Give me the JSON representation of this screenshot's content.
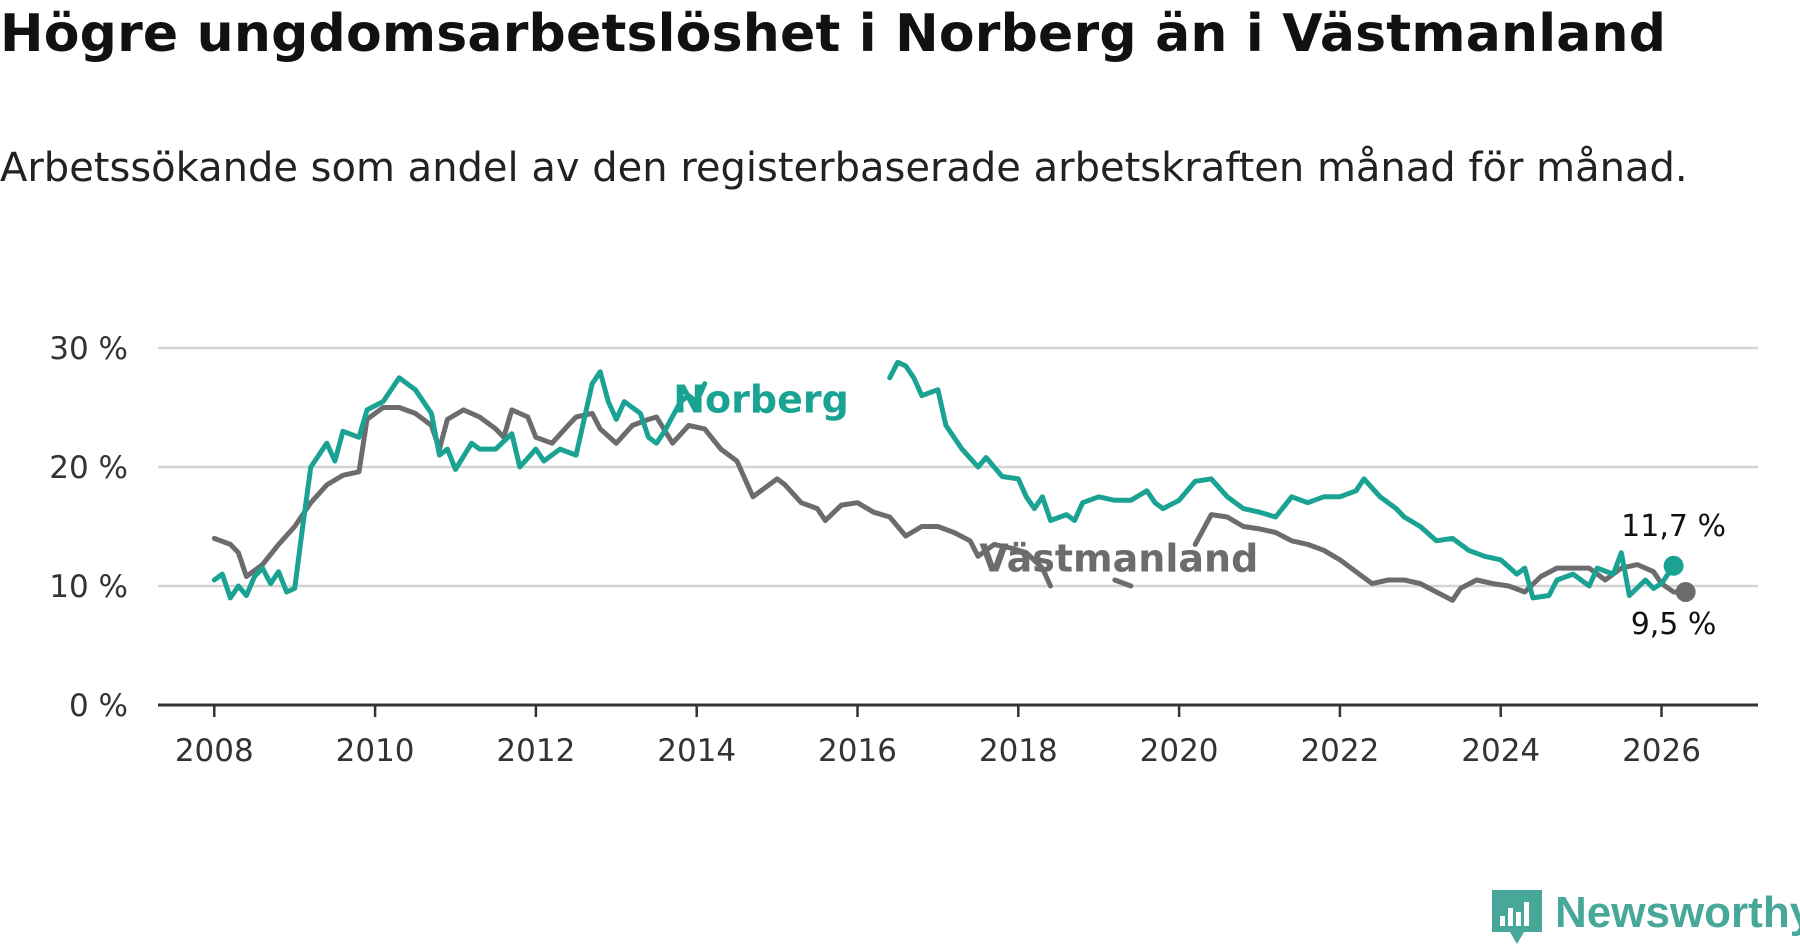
{
  "title": "Högre ungdomsarbetslöshet i Norberg än i Västmanland",
  "subtitle": "Arbetssökande som andel av den registerbaserade arbetskraften månad för månad.",
  "brand": {
    "name": "Newsworthy",
    "icon": "newsworthy-logo-icon",
    "color": "#47a89a"
  },
  "chart_data": {
    "type": "line",
    "title": "Högre ungdomsarbetslöshet i Norberg än i Västmanland",
    "xlabel": "",
    "ylabel": "",
    "ylim": [
      0,
      30
    ],
    "xlim": [
      2007.3,
      2027.2
    ],
    "grid": true,
    "y_ticks": [
      0,
      10,
      20,
      30
    ],
    "y_tick_labels": [
      "0 %",
      "10 %",
      "20 %",
      "30 %"
    ],
    "x_ticks": [
      2008,
      2010,
      2012,
      2014,
      2016,
      2018,
      2020,
      2022,
      2024,
      2026
    ],
    "x_tick_labels": [
      "2008",
      "2010",
      "2012",
      "2014",
      "2016",
      "2018",
      "2020",
      "2022",
      "2024",
      "2026"
    ],
    "series": [
      {
        "name": "Västmanland",
        "color": "#6d6b6e",
        "label_text": "Västmanland",
        "end_label": "9,5 %",
        "points": [
          [
            2008.0,
            14.0
          ],
          [
            2008.2,
            13.5
          ],
          [
            2008.3,
            12.8
          ],
          [
            2008.4,
            10.8
          ],
          [
            2008.6,
            11.8
          ],
          [
            2008.8,
            13.5
          ],
          [
            2009.0,
            15.0
          ],
          [
            2009.2,
            17.0
          ],
          [
            2009.4,
            18.5
          ],
          [
            2009.6,
            19.3
          ],
          [
            2009.8,
            19.6
          ],
          [
            2009.9,
            24.0
          ],
          [
            2010.1,
            25.0
          ],
          [
            2010.3,
            25.0
          ],
          [
            2010.5,
            24.5
          ],
          [
            2010.7,
            23.5
          ],
          [
            2010.8,
            21.5
          ],
          [
            2010.9,
            24.0
          ],
          [
            2011.1,
            24.8
          ],
          [
            2011.3,
            24.2
          ],
          [
            2011.5,
            23.2
          ],
          [
            2011.6,
            22.5
          ],
          [
            2011.7,
            24.8
          ],
          [
            2011.9,
            24.2
          ],
          [
            2012.0,
            22.5
          ],
          [
            2012.2,
            22.0
          ],
          [
            2012.4,
            23.5
          ],
          [
            2012.5,
            24.2
          ],
          [
            2012.7,
            24.5
          ],
          [
            2012.8,
            23.2
          ],
          [
            2013.0,
            22.0
          ],
          [
            2013.2,
            23.5
          ],
          [
            2013.4,
            24.0
          ],
          [
            2013.5,
            24.2
          ],
          [
            2013.7,
            22.0
          ],
          [
            2013.9,
            23.5
          ],
          [
            2014.1,
            23.2
          ],
          [
            2014.3,
            21.5
          ],
          [
            2014.5,
            20.5
          ],
          [
            2014.6,
            19.0
          ],
          [
            2014.7,
            17.5
          ],
          [
            2014.8,
            18.0
          ],
          [
            2015.0,
            19.0
          ],
          [
            2015.1,
            18.5
          ],
          [
            2015.3,
            17.0
          ],
          [
            2015.5,
            16.5
          ],
          [
            2015.6,
            15.5
          ],
          [
            2015.8,
            16.8
          ],
          [
            2016.0,
            17.0
          ],
          [
            2016.2,
            16.2
          ],
          [
            2016.4,
            15.8
          ],
          [
            2016.6,
            14.2
          ],
          [
            2016.8,
            15.0
          ],
          [
            2017.0,
            15.0
          ],
          [
            2017.2,
            14.5
          ],
          [
            2017.4,
            13.8
          ],
          [
            2017.5,
            12.5
          ],
          [
            2017.7,
            13.5
          ],
          [
            2017.9,
            13.2
          ],
          [
            2018.1,
            12.8
          ],
          [
            2018.3,
            11.5
          ],
          [
            2018.4,
            10.0
          ],
          [
            2018.6,
            11.2
          ],
          [
            2018.8,
            11.8
          ],
          [
            2019.0,
            11.0
          ],
          [
            2019.2,
            10.5
          ],
          [
            2019.4,
            10.0
          ],
          [
            2019.6,
            10.8
          ],
          [
            2019.8,
            11.5
          ],
          [
            2020.0,
            12.5
          ],
          [
            2020.2,
            13.5
          ],
          [
            2020.4,
            16.0
          ],
          [
            2020.6,
            15.8
          ],
          [
            2020.8,
            15.0
          ],
          [
            2021.0,
            14.8
          ],
          [
            2021.2,
            14.5
          ],
          [
            2021.4,
            13.8
          ],
          [
            2021.6,
            13.5
          ],
          [
            2021.8,
            13.0
          ],
          [
            2022.0,
            12.2
          ],
          [
            2022.2,
            11.2
          ],
          [
            2022.4,
            10.2
          ],
          [
            2022.6,
            10.5
          ],
          [
            2022.8,
            10.5
          ],
          [
            2023.0,
            10.2
          ],
          [
            2023.2,
            9.5
          ],
          [
            2023.4,
            8.8
          ],
          [
            2023.5,
            9.8
          ],
          [
            2023.7,
            10.5
          ],
          [
            2023.9,
            10.2
          ],
          [
            2024.1,
            10.0
          ],
          [
            2024.3,
            9.5
          ],
          [
            2024.5,
            10.8
          ],
          [
            2024.7,
            11.5
          ],
          [
            2024.9,
            11.5
          ],
          [
            2025.1,
            11.5
          ],
          [
            2025.3,
            10.5
          ],
          [
            2025.5,
            11.5
          ],
          [
            2025.7,
            11.8
          ],
          [
            2025.9,
            11.2
          ],
          [
            2026.0,
            10.2
          ],
          [
            2026.15,
            9.5
          ],
          [
            2026.3,
            9.5
          ]
        ],
        "gaps": [
          [
            2018.55,
            2019.05
          ],
          [
            2019.55,
            2020.15
          ]
        ]
      },
      {
        "name": "Norberg",
        "color": "#1aa393",
        "label_text": "Norberg",
        "end_label": "11,7 %",
        "points": [
          [
            2008.0,
            10.5
          ],
          [
            2008.1,
            11.0
          ],
          [
            2008.2,
            9.0
          ],
          [
            2008.3,
            10.0
          ],
          [
            2008.4,
            9.2
          ],
          [
            2008.5,
            10.8
          ],
          [
            2008.6,
            11.5
          ],
          [
            2008.7,
            10.2
          ],
          [
            2008.8,
            11.2
          ],
          [
            2008.9,
            9.5
          ],
          [
            2009.0,
            9.8
          ],
          [
            2009.1,
            15.0
          ],
          [
            2009.2,
            20.0
          ],
          [
            2009.4,
            22.0
          ],
          [
            2009.5,
            20.5
          ],
          [
            2009.6,
            23.0
          ],
          [
            2009.8,
            22.5
          ],
          [
            2009.9,
            24.8
          ],
          [
            2010.1,
            25.5
          ],
          [
            2010.3,
            27.5
          ],
          [
            2010.4,
            27.0
          ],
          [
            2010.5,
            26.5
          ],
          [
            2010.7,
            24.5
          ],
          [
            2010.8,
            21.0
          ],
          [
            2010.9,
            21.5
          ],
          [
            2011.0,
            19.8
          ],
          [
            2011.2,
            22.0
          ],
          [
            2011.3,
            21.5
          ],
          [
            2011.5,
            21.5
          ],
          [
            2011.7,
            22.8
          ],
          [
            2011.8,
            20.0
          ],
          [
            2012.0,
            21.5
          ],
          [
            2012.1,
            20.5
          ],
          [
            2012.3,
            21.5
          ],
          [
            2012.5,
            21.0
          ],
          [
            2012.7,
            27.0
          ],
          [
            2012.8,
            28.0
          ],
          [
            2012.9,
            25.5
          ],
          [
            2013.0,
            24.0
          ],
          [
            2013.1,
            25.5
          ],
          [
            2013.3,
            24.5
          ],
          [
            2013.4,
            22.5
          ],
          [
            2013.5,
            22.0
          ],
          [
            2013.6,
            23.0
          ],
          [
            2013.8,
            25.5
          ],
          [
            2013.9,
            26.0
          ],
          [
            2014.0,
            25.5
          ],
          [
            2014.1,
            27.0
          ],
          [
            2016.4,
            27.5
          ],
          [
            2016.5,
            28.8
          ],
          [
            2016.6,
            28.5
          ],
          [
            2016.7,
            27.5
          ],
          [
            2016.8,
            26.0
          ],
          [
            2017.0,
            26.5
          ],
          [
            2017.1,
            23.5
          ],
          [
            2017.3,
            21.5
          ],
          [
            2017.5,
            20.0
          ],
          [
            2017.6,
            20.8
          ],
          [
            2017.8,
            19.2
          ],
          [
            2018.0,
            19.0
          ],
          [
            2018.1,
            17.5
          ],
          [
            2018.2,
            16.5
          ],
          [
            2018.3,
            17.5
          ],
          [
            2018.4,
            15.5
          ],
          [
            2018.6,
            16.0
          ],
          [
            2018.7,
            15.5
          ],
          [
            2018.8,
            17.0
          ],
          [
            2019.0,
            17.5
          ],
          [
            2019.2,
            17.2
          ],
          [
            2019.4,
            17.2
          ],
          [
            2019.6,
            18.0
          ],
          [
            2019.7,
            17.0
          ],
          [
            2019.8,
            16.5
          ],
          [
            2020.0,
            17.2
          ],
          [
            2020.2,
            18.8
          ],
          [
            2020.4,
            19.0
          ],
          [
            2020.6,
            17.5
          ],
          [
            2020.8,
            16.5
          ],
          [
            2021.0,
            16.2
          ],
          [
            2021.2,
            15.8
          ],
          [
            2021.4,
            17.5
          ],
          [
            2021.6,
            17.0
          ],
          [
            2021.8,
            17.5
          ],
          [
            2022.0,
            17.5
          ],
          [
            2022.2,
            18.0
          ],
          [
            2022.3,
            19.0
          ],
          [
            2022.5,
            17.5
          ],
          [
            2022.7,
            16.5
          ],
          [
            2022.8,
            15.8
          ],
          [
            2023.0,
            15.0
          ],
          [
            2023.2,
            13.8
          ],
          [
            2023.4,
            14.0
          ],
          [
            2023.6,
            13.0
          ],
          [
            2023.8,
            12.5
          ],
          [
            2024.0,
            12.2
          ],
          [
            2024.2,
            11.0
          ],
          [
            2024.3,
            11.5
          ],
          [
            2024.4,
            9.0
          ],
          [
            2024.6,
            9.2
          ],
          [
            2024.7,
            10.5
          ],
          [
            2024.9,
            11.0
          ],
          [
            2025.1,
            10.0
          ],
          [
            2025.2,
            11.5
          ],
          [
            2025.4,
            11.0
          ],
          [
            2025.5,
            12.8
          ],
          [
            2025.6,
            9.2
          ],
          [
            2025.8,
            10.5
          ],
          [
            2025.9,
            9.8
          ],
          [
            2026.0,
            10.2
          ],
          [
            2026.15,
            11.7
          ]
        ],
        "gaps": [
          [
            2014.12,
            2016.35
          ]
        ]
      }
    ]
  }
}
